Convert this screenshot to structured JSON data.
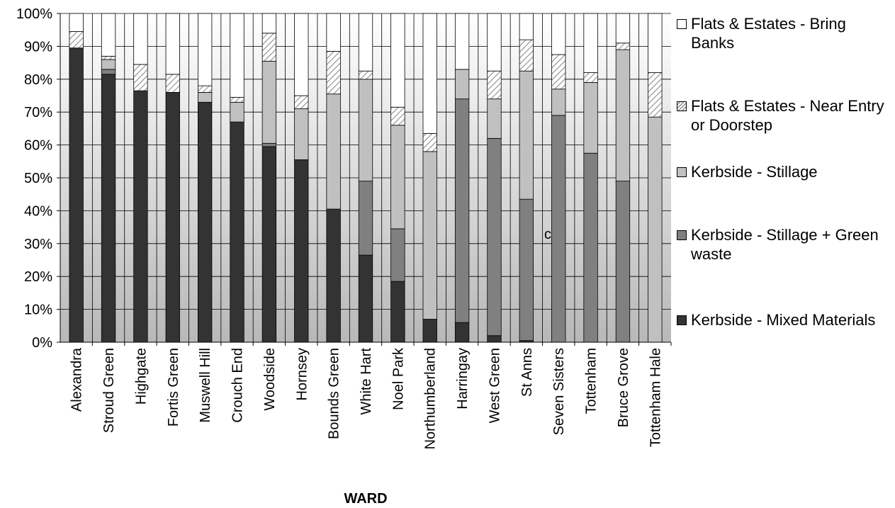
{
  "chart_data": {
    "type": "bar",
    "stacked": true,
    "xlabel": "WARD",
    "ylabel": "",
    "ylim": [
      0,
      100
    ],
    "y_ticks": [
      "0%",
      "10%",
      "20%",
      "30%",
      "40%",
      "50%",
      "60%",
      "70%",
      "80%",
      "90%",
      "100%"
    ],
    "grid": true,
    "legend_position": "right",
    "categories": [
      "Alexandra",
      "Stroud Green",
      "Highgate",
      "Fortis Green",
      "Muswell Hill",
      "Crouch End",
      "Woodside",
      "Hornsey",
      "Bounds Green",
      "White Hart",
      "Noel Park",
      "Northumberland",
      "Harringay",
      "West Green",
      "St Anns",
      "Seven Sisters",
      "Tottenham",
      "Bruce Grove",
      "Tottenham Hale"
    ],
    "series": [
      {
        "name": "Kerbside - Mixed Materials",
        "color": "#333333",
        "values": [
          89.5,
          81.5,
          76.5,
          76.0,
          73.0,
          67.0,
          59.5,
          55.5,
          40.5,
          26.5,
          18.5,
          7.0,
          6.0,
          2.0,
          0.5,
          0,
          0,
          0,
          0
        ]
      },
      {
        "name": "Kerbside - Stillage + Green waste",
        "color": "#808080",
        "values": [
          0,
          1.5,
          0,
          0,
          0,
          0,
          1.0,
          0,
          0,
          22.5,
          16.0,
          0,
          68.0,
          60.0,
          43.0,
          69.0,
          57.5,
          49.0,
          0
        ]
      },
      {
        "name": "Kerbside - Stillage",
        "color": "#c0c0c0",
        "values": [
          0,
          3.0,
          0,
          0,
          3.0,
          6.0,
          25.0,
          15.5,
          35.0,
          31.0,
          31.5,
          51.0,
          9.0,
          12.0,
          39.0,
          8.0,
          21.5,
          40.0,
          68.5
        ]
      },
      {
        "name": "Flats & Estates - Near Entry or Doorstep",
        "color": "#e6e6e6",
        "pattern": "hatch",
        "values": [
          5.0,
          1.0,
          8.0,
          5.5,
          2.0,
          1.5,
          8.5,
          4.0,
          13.0,
          2.5,
          5.5,
          5.5,
          0,
          8.5,
          9.5,
          10.5,
          3.0,
          2.0,
          13.5
        ]
      },
      {
        "name": "Flats & Estates - Bring Banks",
        "color": "#ffffff",
        "values": [
          5.5,
          13.0,
          15.5,
          18.5,
          22.0,
          25.5,
          6.0,
          25.0,
          11.5,
          17.5,
          28.5,
          36.5,
          17.0,
          17.5,
          8.0,
          12.5,
          18.0,
          9.0,
          18.0
        ]
      }
    ],
    "annotations": [
      "c"
    ]
  },
  "legend": [
    {
      "label": "Flats & Estates - Bring Banks",
      "swatch": "white"
    },
    {
      "label": "Flats & Estates - Near Entry or Doorstep",
      "swatch": "hatch"
    },
    {
      "label": "Kerbside - Stillage",
      "swatch": "#c0c0c0"
    },
    {
      "label": "Kerbside - Stillage + Green waste",
      "swatch": "#808080"
    },
    {
      "label": "Kerbside - Mixed Materials",
      "swatch": "#333333"
    }
  ]
}
